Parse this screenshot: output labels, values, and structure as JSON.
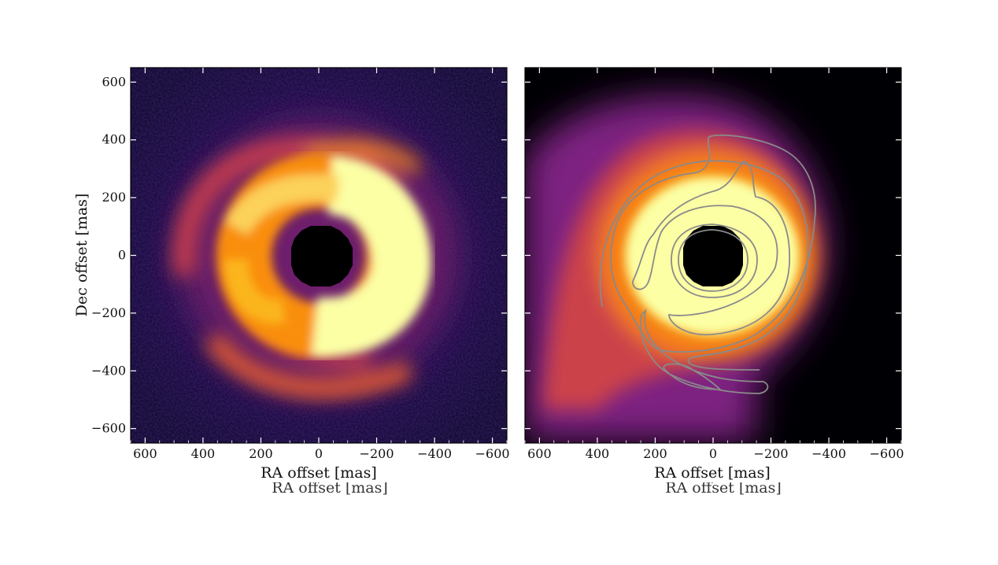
{
  "chart_data": [
    {
      "type": "heatmap",
      "panel": "left",
      "xlabel": "RA offset [mas]",
      "ylabel": "Dec offset [mas]",
      "xlim": [
        650,
        -650
      ],
      "ylim": [
        -650,
        650
      ],
      "xticks": [
        600,
        400,
        200,
        0,
        -200,
        -400,
        -600
      ],
      "yticks": [
        600,
        400,
        200,
        0,
        -200,
        -400,
        -600
      ],
      "colormap": "inferno",
      "background_color": "#1b0c41",
      "masked_center_radius_mas": 100,
      "features": [
        "bright inner ring",
        "two trailing spiral arms",
        "pixel noise background"
      ]
    },
    {
      "type": "heatmap",
      "panel": "right",
      "xlabel": "RA offset [mas]",
      "xlim": [
        650,
        -650
      ],
      "ylim": [
        -650,
        650
      ],
      "xticks": [
        600,
        400,
        200,
        0,
        -200,
        -400,
        -600
      ],
      "yticks": [
        600,
        400,
        200,
        0,
        -200,
        -400,
        -600
      ],
      "colormap": "inferno",
      "background_color": "#000004",
      "masked_center_radius_mas": 100,
      "contour_color": "#8a8a8a",
      "features": [
        "smooth model image",
        "grey contours overlaid from observed image"
      ]
    }
  ],
  "ghost_label": "RA offset [mas]"
}
